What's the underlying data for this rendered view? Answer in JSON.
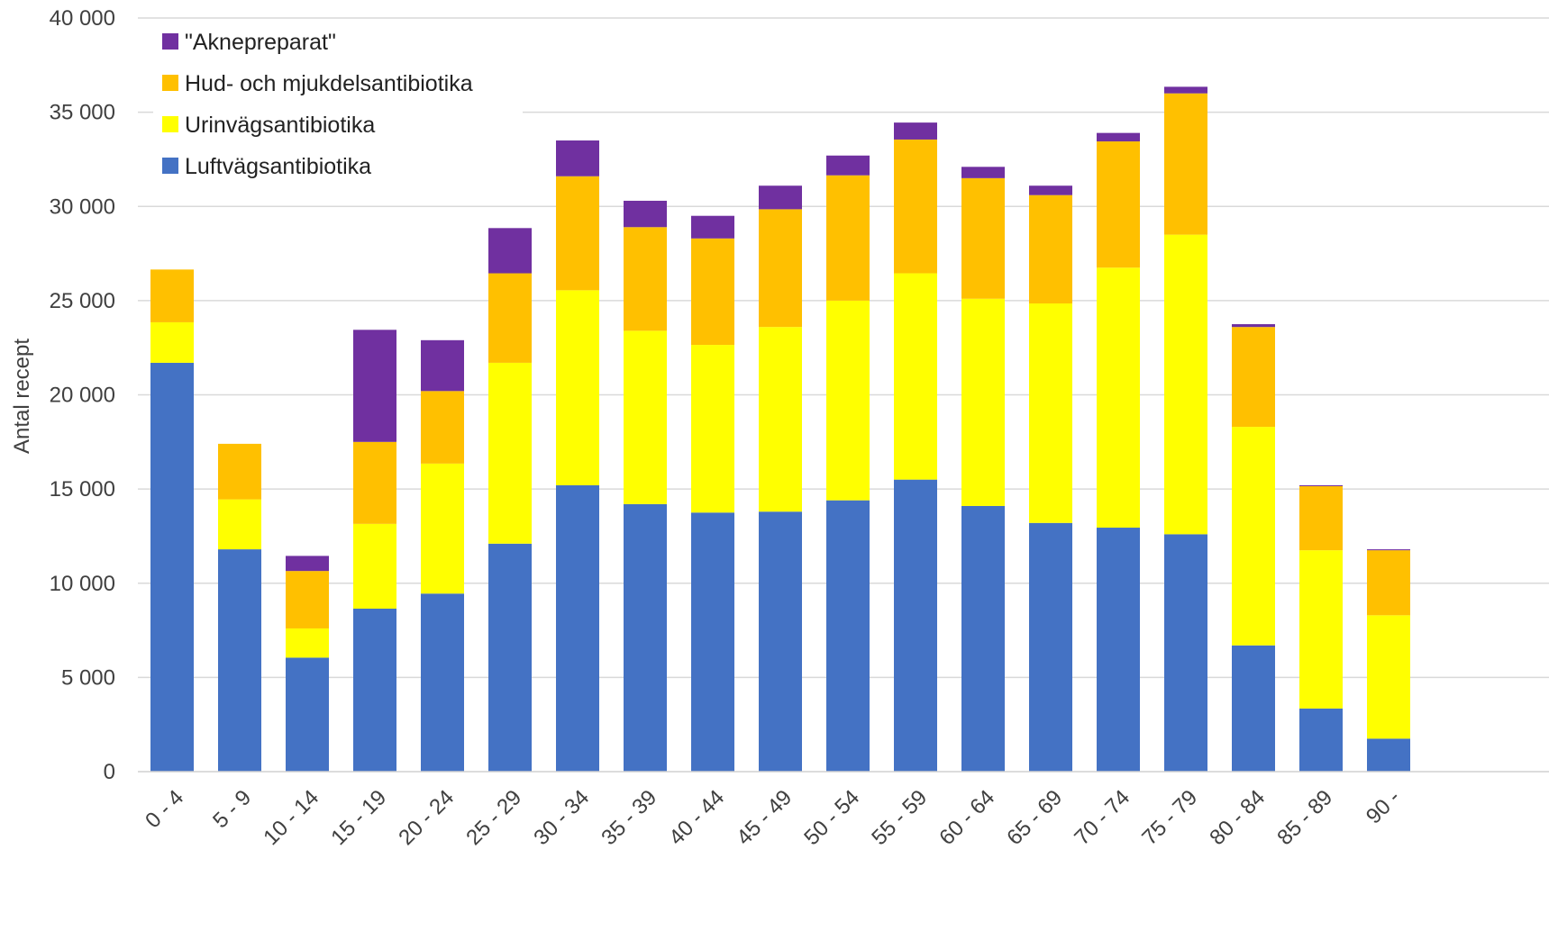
{
  "chart_data": {
    "type": "bar",
    "stacked": true,
    "title": "",
    "xlabel": "",
    "ylabel": "Antal recept",
    "ylim": [
      0,
      40000
    ],
    "yticks": [
      0,
      5000,
      10000,
      15000,
      20000,
      25000,
      30000,
      35000,
      40000
    ],
    "ytick_labels": [
      "0",
      "5 000",
      "10 000",
      "15 000",
      "20 000",
      "25 000",
      "30 000",
      "35 000",
      "40 000"
    ],
    "grid": true,
    "legend_position": "top-left",
    "categories": [
      "0 - 4",
      "5 - 9",
      "10 - 14",
      "15 - 19",
      "20 - 24",
      "25 - 29",
      "30 - 34",
      "35 - 39",
      "40 - 44",
      "45 - 49",
      "50 - 54",
      "55 - 59",
      "60 - 64",
      "65 - 69",
      "70 - 74",
      "75 - 79",
      "80 - 84",
      "85 - 89",
      "90 -"
    ],
    "series": [
      {
        "name": "Luftvägsantibiotika",
        "color": "#4472C4",
        "values": [
          21700,
          11800,
          6050,
          8650,
          9450,
          12100,
          15200,
          14200,
          13750,
          13800,
          14400,
          15500,
          14100,
          13200,
          12950,
          12600,
          6700,
          3350,
          1750
        ]
      },
      {
        "name": "Urinvägsantibiotika",
        "color": "#FFFF00",
        "values": [
          2150,
          2650,
          1550,
          4500,
          6900,
          9600,
          10350,
          9200,
          8900,
          9800,
          10600,
          10950,
          11000,
          11650,
          13800,
          15900,
          11600,
          8400,
          6550
        ]
      },
      {
        "name": "Hud- och  mjukdelsantibiotika",
        "color": "#FFC000",
        "values": [
          2800,
          2950,
          3050,
          4350,
          3850,
          4750,
          6050,
          5500,
          5650,
          6250,
          6650,
          7100,
          6400,
          5750,
          6700,
          7500,
          5300,
          3400,
          3450
        ]
      },
      {
        "name": "\"Aknepreparat\"",
        "color": "#7030A0",
        "values": [
          0,
          0,
          800,
          5950,
          2700,
          2400,
          1900,
          1400,
          1200,
          1250,
          1050,
          900,
          600,
          500,
          450,
          350,
          150,
          50,
          50
        ]
      }
    ],
    "legend_order": [
      "\"Aknepreparat\"",
      "Hud- och  mjukdelsantibiotika",
      "Urinvägsantibiotika",
      "Luftvägsantibiotika"
    ]
  }
}
